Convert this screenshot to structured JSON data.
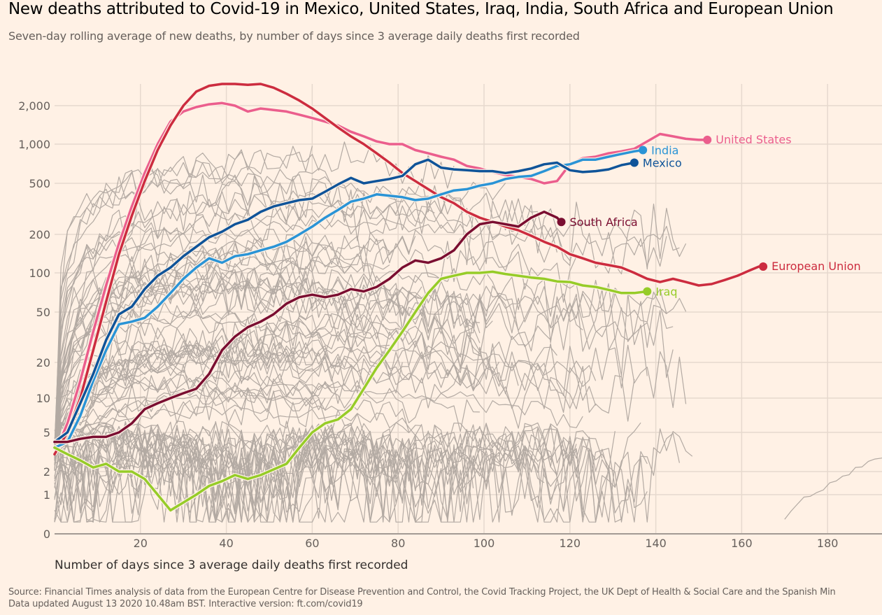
{
  "header": {
    "title": "New deaths attributed to Covid-19 in Mexico, United States, Iraq, India, South Africa and European Union",
    "subtitle": "Seven-day rolling average of new deaths, by number of days since 3 average daily deaths first recorded"
  },
  "footer": {
    "source_line1": "Source: Financial Times analysis of data from the European Centre for Disease Prevention and Control, the Covid Tracking Project, the UK Dept of Health & Social Care and the Spanish Min",
    "source_line2": "Data updated August 13 2020 10.48am BST. Interactive version: ft.com/covid19"
  },
  "chart_data": {
    "type": "line",
    "title": "New deaths attributed to Covid-19 in Mexico, United States, Iraq, India, South Africa and European Union",
    "subtitle": "Seven-day rolling average of new deaths, by number of days since 3 average daily deaths first recorded",
    "xlabel": "Number of days since 3 average daily deaths first recorded",
    "ylabel": "",
    "yscale": "log (symlog, with 0 baseline)",
    "xlim": [
      0,
      194
    ],
    "ylim": [
      0,
      3000
    ],
    "xticks": [
      20,
      40,
      60,
      80,
      100,
      120,
      140,
      160,
      180
    ],
    "xtick_labels": [
      "20",
      "40",
      "60",
      "80",
      "100",
      "120",
      "140",
      "160",
      "180"
    ],
    "yticks": [
      0,
      1,
      2,
      5,
      10,
      20,
      50,
      100,
      200,
      500,
      1000,
      2000
    ],
    "ytick_labels": [
      "0",
      "1",
      "2",
      "5",
      "10",
      "20",
      "50",
      "100",
      "200",
      "500",
      "1,000",
      "2,000"
    ],
    "grid": true,
    "background_series_note": "Grey lines: other countries (unlabelled)",
    "background_color": "#b3aaa3",
    "series": [
      {
        "name": "United States",
        "color": "#eb5e8d",
        "label": "United States",
        "x": [
          0,
          3,
          6,
          9,
          12,
          15,
          18,
          21,
          24,
          27,
          30,
          33,
          36,
          39,
          42,
          45,
          48,
          51,
          54,
          57,
          60,
          63,
          66,
          69,
          72,
          75,
          78,
          81,
          84,
          87,
          90,
          93,
          96,
          99,
          102,
          105,
          108,
          111,
          114,
          117,
          120,
          123,
          126,
          129,
          132,
          135,
          138,
          141,
          144,
          147,
          150,
          152
        ],
        "y": [
          3,
          6,
          14,
          35,
          80,
          170,
          330,
          600,
          1000,
          1500,
          1800,
          1950,
          2050,
          2100,
          2000,
          1800,
          1900,
          1850,
          1800,
          1700,
          1600,
          1500,
          1400,
          1250,
          1150,
          1050,
          1000,
          1000,
          900,
          850,
          800,
          760,
          680,
          650,
          610,
          580,
          560,
          540,
          500,
          520,
          700,
          780,
          800,
          850,
          880,
          920,
          1050,
          1200,
          1150,
          1100,
          1080,
          1080
        ]
      },
      {
        "name": "European Union",
        "color": "#cc2c3f",
        "label": "European Union",
        "x": [
          0,
          3,
          6,
          9,
          12,
          15,
          18,
          21,
          24,
          27,
          30,
          33,
          36,
          39,
          42,
          45,
          48,
          51,
          54,
          57,
          60,
          63,
          66,
          69,
          72,
          75,
          78,
          81,
          84,
          87,
          90,
          93,
          96,
          99,
          102,
          105,
          108,
          111,
          114,
          117,
          120,
          123,
          126,
          129,
          132,
          135,
          138,
          141,
          144,
          147,
          150,
          153,
          156,
          159,
          162,
          164,
          165
        ],
        "y": [
          3,
          5,
          10,
          25,
          60,
          140,
          280,
          520,
          900,
          1400,
          2000,
          2600,
          2900,
          3000,
          3000,
          2950,
          3000,
          2800,
          2500,
          2200,
          1900,
          1600,
          1350,
          1150,
          1000,
          850,
          720,
          600,
          520,
          450,
          390,
          350,
          300,
          270,
          250,
          230,
          215,
          195,
          175,
          160,
          140,
          130,
          120,
          115,
          110,
          100,
          90,
          85,
          90,
          85,
          80,
          82,
          88,
          95,
          105,
          112,
          112
        ]
      },
      {
        "name": "India",
        "color": "#2a94d6",
        "label": "India",
        "x": [
          0,
          3,
          6,
          9,
          12,
          15,
          18,
          21,
          24,
          27,
          30,
          33,
          36,
          39,
          42,
          45,
          48,
          51,
          54,
          57,
          60,
          63,
          66,
          69,
          72,
          75,
          78,
          81,
          84,
          87,
          90,
          93,
          96,
          99,
          102,
          105,
          108,
          111,
          114,
          117,
          120,
          123,
          126,
          129,
          132,
          135,
          137
        ],
        "y": [
          3.5,
          4,
          7,
          14,
          25,
          40,
          42,
          45,
          55,
          70,
          90,
          110,
          130,
          120,
          135,
          140,
          150,
          160,
          175,
          200,
          230,
          270,
          310,
          360,
          380,
          410,
          400,
          390,
          370,
          380,
          410,
          440,
          450,
          480,
          500,
          540,
          560,
          570,
          620,
          680,
          700,
          760,
          760,
          800,
          840,
          880,
          900
        ]
      },
      {
        "name": "Mexico",
        "color": "#0f5499",
        "label": "Mexico",
        "x": [
          0,
          3,
          6,
          9,
          12,
          15,
          18,
          21,
          24,
          27,
          30,
          33,
          36,
          39,
          42,
          45,
          48,
          51,
          54,
          57,
          60,
          63,
          66,
          69,
          72,
          75,
          78,
          81,
          84,
          87,
          90,
          93,
          96,
          99,
          102,
          105,
          108,
          111,
          114,
          117,
          120,
          123,
          126,
          129,
          132,
          135
        ],
        "y": [
          4,
          5,
          9,
          16,
          30,
          48,
          55,
          75,
          95,
          110,
          135,
          160,
          190,
          210,
          240,
          260,
          300,
          330,
          350,
          370,
          380,
          430,
          490,
          550,
          500,
          520,
          540,
          570,
          700,
          760,
          660,
          640,
          630,
          620,
          620,
          600,
          620,
          650,
          700,
          720,
          630,
          610,
          620,
          640,
          690,
          720
        ]
      },
      {
        "name": "South Africa",
        "color": "#7a0e31",
        "label": "South Africa",
        "x": [
          0,
          3,
          6,
          9,
          12,
          15,
          18,
          21,
          24,
          27,
          30,
          33,
          36,
          39,
          42,
          45,
          48,
          51,
          54,
          57,
          60,
          63,
          66,
          69,
          72,
          75,
          78,
          81,
          84,
          87,
          90,
          93,
          96,
          99,
          102,
          105,
          108,
          111,
          114,
          117,
          118
        ],
        "y": [
          4,
          4,
          4.3,
          4.5,
          4.5,
          5,
          6,
          8,
          9,
          10,
          11,
          12,
          16,
          25,
          32,
          38,
          42,
          48,
          58,
          65,
          68,
          65,
          68,
          75,
          72,
          78,
          90,
          110,
          125,
          120,
          130,
          150,
          200,
          240,
          250,
          240,
          230,
          270,
          300,
          270,
          250
        ]
      },
      {
        "name": "Iraq",
        "color": "#96cc28",
        "label": "Iraq",
        "x": [
          0,
          3,
          6,
          9,
          12,
          15,
          18,
          21,
          24,
          27,
          30,
          33,
          36,
          39,
          42,
          45,
          48,
          51,
          54,
          57,
          60,
          63,
          66,
          69,
          72,
          75,
          78,
          81,
          84,
          87,
          90,
          93,
          96,
          99,
          102,
          105,
          108,
          111,
          114,
          117,
          120,
          123,
          126,
          129,
          132,
          135,
          138
        ],
        "y": [
          3.5,
          3,
          2.6,
          2.2,
          2.4,
          2,
          2,
          1.6,
          1,
          0.6,
          0.8,
          1,
          1.3,
          1.5,
          1.8,
          1.6,
          1.8,
          2.1,
          2.4,
          3.5,
          5,
          6,
          6.5,
          8,
          12,
          18,
          25,
          35,
          50,
          70,
          90,
          95,
          100,
          100,
          102,
          98,
          95,
          92,
          90,
          86,
          85,
          80,
          78,
          74,
          70,
          70,
          72
        ]
      }
    ]
  }
}
